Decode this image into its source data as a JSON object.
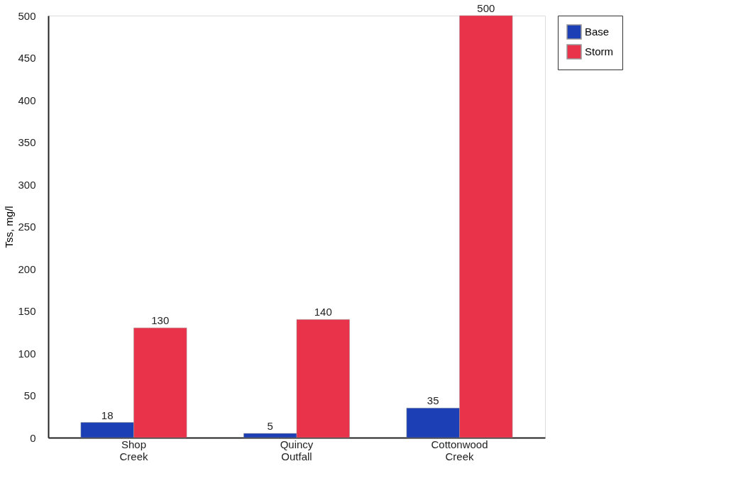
{
  "chart_data": {
    "type": "bar",
    "ylabel": "Tss, mg/l",
    "categories": [
      "Shop Creek",
      "Quincy Outfall",
      "Cottonwood Creek"
    ],
    "series": [
      {
        "name": "Base",
        "color": "#1c3fb5",
        "values": [
          18,
          5,
          35
        ]
      },
      {
        "name": "Storm",
        "color": "#e8334a",
        "values": [
          130,
          140,
          500
        ]
      }
    ],
    "ylim": [
      0,
      500
    ],
    "yticks": [
      0,
      50,
      100,
      150,
      200,
      250,
      300,
      350,
      400,
      450,
      500
    ],
    "grid": false,
    "legend": "right",
    "data_labels": true
  }
}
